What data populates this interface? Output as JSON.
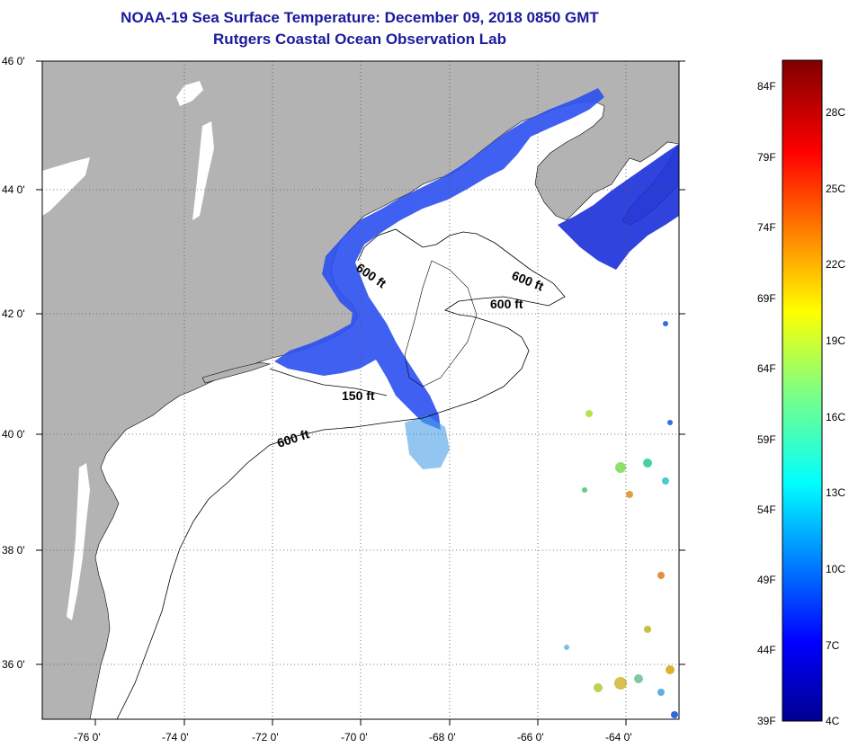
{
  "title": "NOAA-19 Sea Surface Temperature:  December 09, 2018 0850 GMT",
  "subtitle": "Rutgers Coastal Ocean Observation Lab",
  "lat_ticks": [
    "46 0'",
    "44 0'",
    "42 0'",
    "40 0'",
    "38 0'",
    "36 0'"
  ],
  "lon_ticks": [
    "-76 0'",
    "-74 0'",
    "-72 0'",
    "-70 0'",
    "-68 0'",
    "-66 0'",
    "-64 0'"
  ],
  "contour_labels": [
    "600 ft",
    "600 ft",
    "600 ft",
    "150 ft",
    "600 ft"
  ],
  "colorbar": {
    "fahrenheit": [
      "84F",
      "79F",
      "74F",
      "69F",
      "64F",
      "59F",
      "54F",
      "49F",
      "44F",
      "39F"
    ],
    "celsius": [
      "28C",
      "25C",
      "22C",
      "19C",
      "16C",
      "13C",
      "10C",
      "7C",
      "4C"
    ]
  },
  "colors": {
    "land": "#b3b3b3",
    "ocean": "#ffffff",
    "title": "#1a1a9c",
    "cold_water": "#1e50e6"
  }
}
